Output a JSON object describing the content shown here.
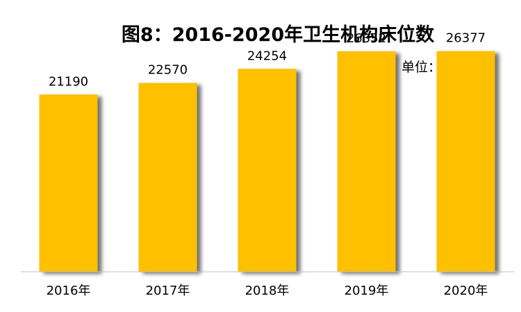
{
  "chart_data": {
    "type": "bar",
    "title": "图8：2016-2020年卫生机构床位数",
    "unit_label": "单位：张",
    "categories": [
      "2016年",
      "2017年",
      "2018年",
      "2019年",
      "2020年"
    ],
    "values": [
      21190,
      22570,
      24254,
      26352,
      26377
    ],
    "data_labels": [
      "21190",
      "22570",
      "24254",
      "26352",
      "26377"
    ],
    "xlabel": "",
    "ylabel": "",
    "ylim": [
      0,
      30000
    ],
    "grid": false,
    "legend": "none",
    "colors": {
      "bar": "#FFC000",
      "bar_shadow": "#9a9a9a",
      "axis": "#bfbfbf"
    }
  }
}
